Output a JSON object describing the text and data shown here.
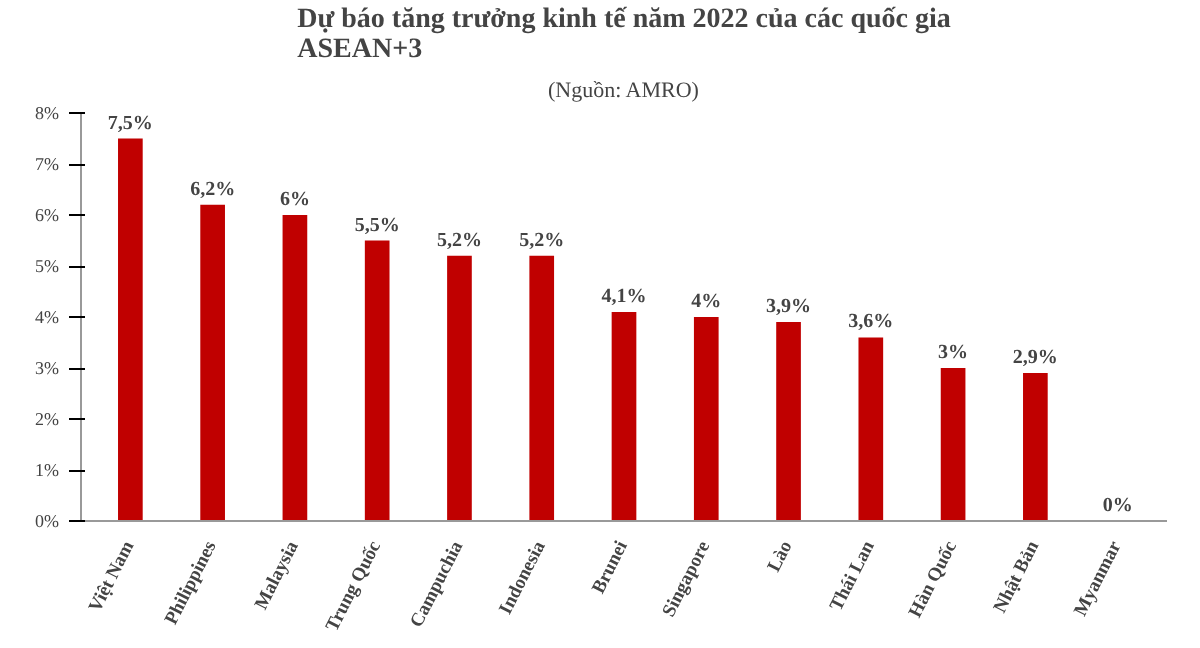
{
  "chart_data": {
    "type": "bar",
    "title": "Dự báo tăng trưởng kinh tế năm 2022 của các quốc gia\nASEAN+3",
    "annotations": [
      "(Nguồn: AMRO)"
    ],
    "categories": [
      "Việt Nam",
      "Philippines",
      "Malaysia",
      "Trung Quốc",
      "Campuchia",
      "Indonesia",
      "Brunei",
      "Singapore",
      "Lào",
      "Thái Lan",
      "Hàn Quốc",
      "Nhật Bản",
      "Myanmar"
    ],
    "values": [
      7.5,
      6.2,
      6,
      5.5,
      5.2,
      5.2,
      4.1,
      4,
      3.9,
      3.6,
      3,
      2.9,
      0
    ],
    "value_labels": [
      "7,5%",
      "6,2%",
      "6%",
      "5,5%",
      "5,2%",
      "5,2%",
      "4,1%",
      "4%",
      "3,9%",
      "3,6%",
      "3%",
      "2,9%",
      "0%"
    ],
    "color": "#c00000",
    "ylim": [
      0,
      8
    ],
    "yticks": [
      {
        "value": 0,
        "label": "0%"
      },
      {
        "value": 1,
        "label": "1%"
      },
      {
        "value": 2,
        "label": "2%"
      },
      {
        "value": 3,
        "label": "3%"
      },
      {
        "value": 4,
        "label": "4%"
      },
      {
        "value": 5,
        "label": "5%"
      },
      {
        "value": 6,
        "label": "6%"
      },
      {
        "value": 7,
        "label": "7%"
      },
      {
        "value": 8,
        "label": "8%"
      }
    ],
    "grid": false
  }
}
